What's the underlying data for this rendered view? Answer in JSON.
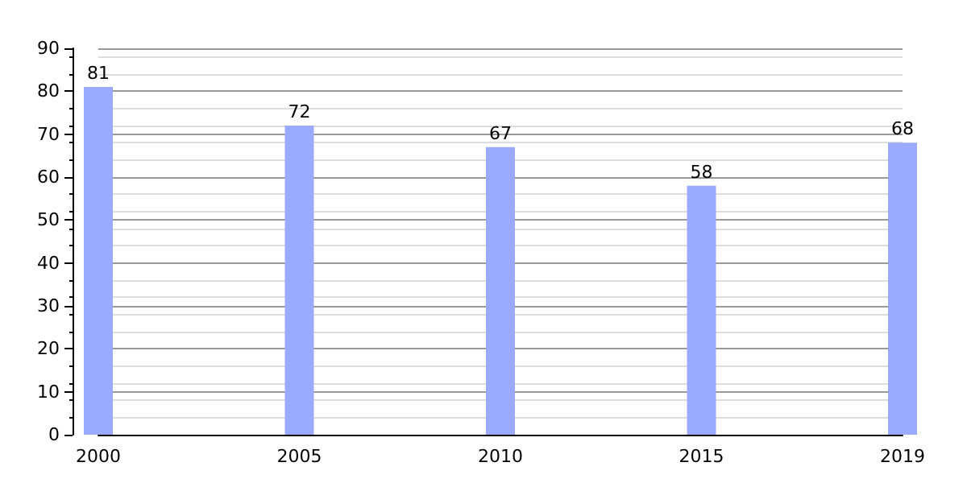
{
  "chart_data": {
    "type": "bar",
    "categories": [
      "2000",
      "2005",
      "2010",
      "2015",
      "2019"
    ],
    "values": [
      81,
      72,
      67,
      58,
      68
    ],
    "color": "#99aaff",
    "ylim": [
      0,
      90
    ],
    "yticks": [
      0,
      10,
      20,
      30,
      40,
      50,
      60,
      70,
      80,
      90
    ],
    "grid": "y",
    "data_labels": true
  }
}
